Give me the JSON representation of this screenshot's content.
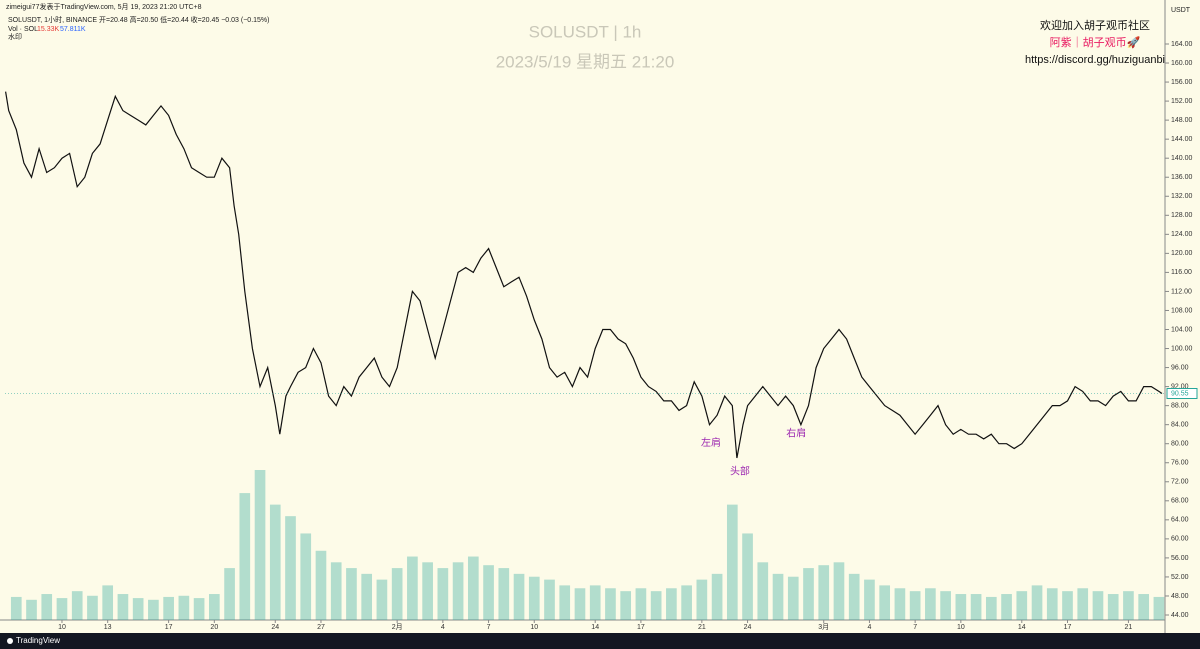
{
  "header": {
    "published": "zimeigui77发表于TradingView.com,  5月 19, 2023 21:20 UTC+8",
    "symbol_line": "SOLUSDT, 1小时, BINANCE  开=20.48  高=20.50  低=20.44  收=20.45  −0.03 (−0.15%)",
    "vol_label": "Vol · SOL",
    "vol_value": "15.33K",
    "vol_ma": "57.811K",
    "watermark_label": "水印"
  },
  "watermark": {
    "symbol": "SOLUSDT | 1h",
    "datetime": "2023/5/19 星期五 21:20"
  },
  "promo": {
    "line1": "欢迎加入胡子观币社区",
    "line2": "阿紫｜胡子观币🚀",
    "line3": "https://discord.gg/huziguanbi"
  },
  "footer": {
    "brand": "TradingView"
  },
  "chart_data": {
    "type": "line",
    "axis_unit": "USDT",
    "grid": false,
    "xlim": [
      6.26,
      82.4
    ],
    "ylim": [
      40.85,
      166.94
    ],
    "xticks": [
      {
        "value": 10,
        "label": "10"
      },
      {
        "value": 13,
        "label": "13"
      },
      {
        "value": 17,
        "label": "17"
      },
      {
        "value": 20,
        "label": "20"
      },
      {
        "value": 24,
        "label": "24"
      },
      {
        "value": 27,
        "label": "27"
      },
      {
        "value": 32,
        "label": "2月"
      },
      {
        "value": 35,
        "label": "4"
      },
      {
        "value": 38,
        "label": "7"
      },
      {
        "value": 41,
        "label": "10"
      },
      {
        "value": 45,
        "label": "14"
      },
      {
        "value": 48,
        "label": "17"
      },
      {
        "value": 52,
        "label": "21"
      },
      {
        "value": 55,
        "label": "24"
      },
      {
        "value": 60,
        "label": "3月"
      },
      {
        "value": 63,
        "label": "4"
      },
      {
        "value": 66,
        "label": "7"
      },
      {
        "value": 69,
        "label": "10"
      },
      {
        "value": 73,
        "label": "14"
      },
      {
        "value": 76,
        "label": "17"
      },
      {
        "value": 80,
        "label": "21"
      }
    ],
    "yticks": [
      {
        "value": 44,
        "label": "44.00"
      },
      {
        "value": 48,
        "label": "48.00"
      },
      {
        "value": 52,
        "label": "52.00"
      },
      {
        "value": 56,
        "label": "56.00"
      },
      {
        "value": 60,
        "label": "60.00"
      },
      {
        "value": 64,
        "label": "64.00"
      },
      {
        "value": 68,
        "label": "68.00"
      },
      {
        "value": 72,
        "label": "72.00"
      },
      {
        "value": 76,
        "label": "76.00"
      },
      {
        "value": 80,
        "label": "80.00"
      },
      {
        "value": 84,
        "label": "84.00"
      },
      {
        "value": 88,
        "label": "88.00"
      },
      {
        "value": 92,
        "label": "92.00"
      },
      {
        "value": 96,
        "label": "96.00"
      },
      {
        "value": 100,
        "label": "100.00"
      },
      {
        "value": 104,
        "label": "104.00"
      },
      {
        "value": 108,
        "label": "108.00"
      },
      {
        "value": 112,
        "label": "112.00"
      },
      {
        "value": 116,
        "label": "116.00"
      },
      {
        "value": 120,
        "label": "120.00"
      },
      {
        "value": 124,
        "label": "124.00"
      },
      {
        "value": 128,
        "label": "128.00"
      },
      {
        "value": 132,
        "label": "132.00"
      },
      {
        "value": 136,
        "label": "136.00"
      },
      {
        "value": 140,
        "label": "140.00"
      },
      {
        "value": 144,
        "label": "144.00"
      },
      {
        "value": 148,
        "label": "148.00"
      },
      {
        "value": 152,
        "label": "152.00"
      },
      {
        "value": 156,
        "label": "156.00"
      },
      {
        "value": 160,
        "label": "160.00"
      },
      {
        "value": 164,
        "label": "164.00"
      }
    ],
    "last_price": {
      "value": 90.55,
      "label": "90.55"
    },
    "annotations": [
      {
        "text": "左肩",
        "x": 52.6,
        "y": 82
      },
      {
        "text": "头部",
        "x": 54.5,
        "y": 76
      },
      {
        "text": "右肩",
        "x": 58.2,
        "y": 84
      }
    ],
    "series": [
      {
        "name": "SOLUSDT",
        "color": "#111111",
        "x": [
          6.3,
          6.5,
          7,
          7.5,
          8,
          8.5,
          9,
          9.5,
          10,
          10.5,
          11,
          11.5,
          12,
          12.5,
          13,
          13.5,
          14,
          14.5,
          15,
          15.5,
          16,
          16.5,
          17,
          17.5,
          18,
          18.5,
          19,
          19.5,
          20,
          20.5,
          21,
          21.3,
          21.6,
          22,
          22.5,
          23,
          23.5,
          24,
          24.3,
          24.7,
          25,
          25.5,
          26,
          26.5,
          27,
          27.5,
          28,
          28.5,
          29,
          29.5,
          30,
          30.5,
          31,
          31.5,
          32,
          32.5,
          33,
          33.5,
          34,
          34.5,
          35,
          35.5,
          36,
          36.5,
          37,
          37.5,
          38,
          38.5,
          39,
          39.5,
          40,
          40.5,
          41,
          41.5,
          42,
          42.5,
          43,
          43.5,
          44,
          44.5,
          45,
          45.5,
          46,
          46.5,
          47,
          47.5,
          48,
          48.5,
          49,
          49.5,
          50,
          50.5,
          51,
          51.5,
          52,
          52.5,
          53,
          53.5,
          54,
          54.3,
          54.7,
          55,
          55.5,
          56,
          56.5,
          57,
          57.5,
          58,
          58.5,
          59,
          59.5,
          60,
          60.5,
          61,
          61.5,
          62,
          62.5,
          63,
          63.5,
          64,
          64.5,
          65,
          65.5,
          66,
          66.5,
          67,
          67.5,
          68,
          68.5,
          69,
          69.5,
          70,
          70.5,
          71,
          71.5,
          72,
          72.5,
          73,
          73.5,
          74,
          74.5,
          75,
          75.5,
          76,
          76.5,
          77,
          77.5,
          78,
          78.5,
          79,
          79.5,
          80,
          80.5,
          81,
          81.5,
          82,
          82.2
        ],
        "values": [
          154,
          150,
          146,
          139,
          136,
          142,
          137,
          138,
          140,
          141,
          134,
          136,
          141,
          143,
          148,
          153,
          150,
          149,
          148,
          147,
          149,
          151,
          149,
          145,
          142,
          138,
          137,
          136,
          136,
          140,
          138,
          130,
          124,
          112,
          100,
          92,
          96,
          88,
          82,
          90,
          92,
          95,
          96,
          100,
          97,
          90,
          88,
          92,
          90,
          94,
          96,
          98,
          94,
          92,
          96,
          104,
          112,
          110,
          104,
          98,
          104,
          110,
          116,
          117,
          116,
          119,
          121,
          117,
          113,
          114,
          115,
          111,
          106,
          102,
          96,
          94,
          95,
          92,
          96,
          94,
          100,
          104,
          104,
          102,
          101,
          98,
          94,
          92,
          91,
          89,
          89,
          87,
          88,
          93,
          90,
          84,
          86,
          90,
          88,
          77,
          84,
          88,
          90,
          92,
          90,
          88,
          90,
          88,
          84,
          88,
          96,
          100,
          102,
          104,
          102,
          98,
          94,
          92,
          90,
          88,
          87,
          86,
          84,
          82,
          84,
          86,
          88,
          84,
          82,
          83,
          82,
          82,
          81,
          82,
          80,
          80,
          79,
          80,
          82,
          84,
          86,
          88,
          88,
          89,
          92,
          91,
          89,
          89,
          88,
          90,
          91,
          89,
          89,
          92,
          92,
          91,
          90.55
        ]
      },
      {
        "name": "Vol · SOL",
        "color": "#26a69a",
        "kind": "volume",
        "x": [
          7,
          8,
          9,
          10,
          11,
          12,
          13,
          14,
          15,
          16,
          17,
          18,
          19,
          20,
          21,
          22,
          23,
          24,
          25,
          26,
          27,
          28,
          29,
          30,
          31,
          32,
          33,
          34,
          35,
          36,
          37,
          38,
          39,
          40,
          41,
          42,
          43,
          44,
          45,
          46,
          47,
          48,
          49,
          50,
          51,
          52,
          53,
          54,
          55,
          56,
          57,
          58,
          59,
          60,
          61,
          62,
          63,
          64,
          65,
          66,
          67,
          68,
          69,
          70,
          71,
          72,
          73,
          74,
          75,
          76,
          77,
          78,
          79,
          80,
          81,
          82
        ],
        "values": [
          40000,
          35000,
          45000,
          38000,
          50000,
          42000,
          60000,
          45000,
          38000,
          35000,
          40000,
          42000,
          38000,
          45000,
          90000,
          220000,
          260000,
          200000,
          180000,
          150000,
          120000,
          100000,
          90000,
          80000,
          70000,
          90000,
          110000,
          100000,
          90000,
          100000,
          110000,
          95000,
          90000,
          80000,
          75000,
          70000,
          60000,
          55000,
          60000,
          55000,
          50000,
          55000,
          50000,
          55000,
          60000,
          70000,
          80000,
          200000,
          150000,
          100000,
          80000,
          75000,
          90000,
          95000,
          100000,
          80000,
          70000,
          60000,
          55000,
          50000,
          55000,
          50000,
          45000,
          45000,
          40000,
          45000,
          50000,
          60000,
          55000,
          50000,
          55000,
          50000,
          45000,
          50000,
          45000,
          40000
        ]
      }
    ]
  }
}
